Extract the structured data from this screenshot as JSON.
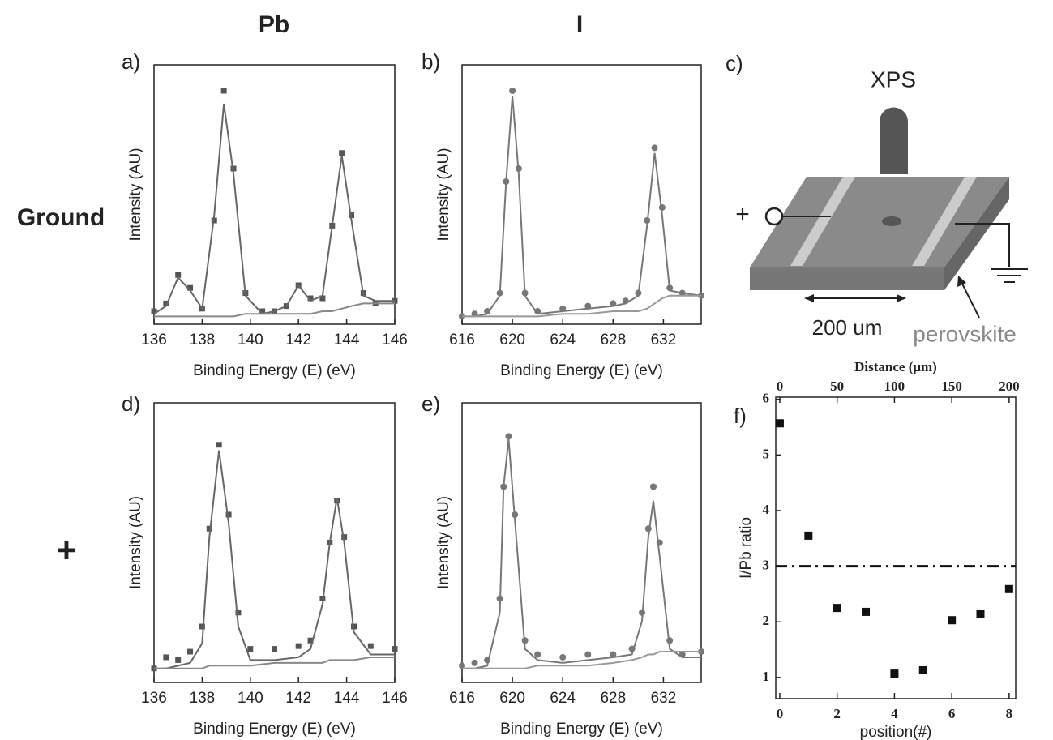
{
  "column_labels": [
    "Pb",
    "I"
  ],
  "row_labels": [
    "Ground",
    "+"
  ],
  "diagram": {
    "label": "c)",
    "probe": "XPS",
    "electrode": "+",
    "distance": "200 um",
    "material": "perovskite"
  },
  "chart_data": [
    {
      "type": "scatter",
      "label": "a)",
      "x_label": "Binding Energy (E) (eV)",
      "y_label": "Intensity (AU)",
      "marker": "square",
      "xlim": [
        136,
        146
      ],
      "xticks": [
        136,
        138,
        140,
        142,
        144,
        146
      ],
      "ylim": [
        0,
        100
      ],
      "x": [
        136,
        136.5,
        137,
        137.5,
        138,
        138.5,
        138.9,
        139.3,
        139.8,
        140.5,
        141,
        141.5,
        142,
        142.5,
        143,
        143.4,
        143.8,
        144.2,
        144.7,
        145.2,
        146
      ],
      "series": [
        {
          "mode": "markers",
          "color": "#555555",
          "values": [
            5,
            8,
            19,
            14,
            6,
            40,
            90,
            60,
            12,
            5,
            5,
            7,
            15,
            10,
            10,
            38,
            66,
            42,
            12,
            8,
            9
          ]
        },
        {
          "mode": "line",
          "color": "#666666",
          "values": [
            4,
            7,
            18,
            13,
            6,
            42,
            85,
            58,
            11,
            4,
            5,
            7,
            15,
            9,
            11,
            38,
            65,
            40,
            11,
            9,
            9
          ]
        },
        {
          "mode": "line",
          "color": "#888888",
          "values": [
            3,
            3,
            3,
            3,
            3,
            3,
            3,
            3,
            4,
            4,
            4,
            4,
            4,
            4,
            5,
            5,
            6,
            7,
            8,
            8,
            8
          ]
        }
      ]
    },
    {
      "type": "scatter",
      "label": "b)",
      "x_label": "Binding Energy (E) (eV)",
      "y_label": "Intensity (AU)",
      "marker": "circle",
      "xlim": [
        616,
        635
      ],
      "xticks": [
        616,
        620,
        624,
        628,
        632
      ],
      "ylim": [
        0,
        100
      ],
      "x": [
        616,
        617,
        618,
        619,
        619.5,
        620,
        620.5,
        621,
        622,
        624,
        626,
        628,
        629,
        630,
        630.7,
        631.3,
        631.9,
        632.5,
        633.5,
        635
      ],
      "series": [
        {
          "mode": "markers",
          "color": "#777777",
          "values": [
            3,
            4,
            5,
            12,
            55,
            90,
            60,
            12,
            5,
            6,
            7,
            8,
            9,
            12,
            40,
            68,
            45,
            14,
            12,
            11
          ]
        },
        {
          "mode": "line",
          "color": "#777777",
          "values": [
            3,
            3,
            4,
            11,
            55,
            88,
            58,
            11,
            4,
            5,
            6,
            7,
            8,
            11,
            38,
            66,
            42,
            13,
            12,
            11
          ]
        },
        {
          "mode": "line",
          "color": "#999999",
          "values": [
            3,
            3,
            3,
            3,
            3,
            3,
            3,
            3,
            3,
            4,
            4,
            5,
            5,
            5,
            6,
            8,
            10,
            11,
            11,
            11
          ]
        }
      ]
    },
    {
      "type": "scatter",
      "label": "d)",
      "x_label": "Binding Energy (E) (eV)",
      "y_label": "Intensity (AU)",
      "marker": "square",
      "xlim": [
        136,
        146
      ],
      "xticks": [
        136,
        138,
        140,
        142,
        144,
        146
      ],
      "ylim": [
        0,
        100
      ],
      "x": [
        136,
        136.5,
        137,
        137.5,
        138,
        138.3,
        138.7,
        139.1,
        139.5,
        140,
        141,
        142,
        142.5,
        143,
        143.3,
        143.6,
        143.9,
        144.3,
        145,
        146
      ],
      "series": [
        {
          "mode": "markers",
          "color": "#555555",
          "values": [
            5,
            9,
            8,
            11,
            20,
            55,
            85,
            60,
            25,
            12,
            12,
            13,
            15,
            30,
            50,
            65,
            52,
            20,
            13,
            12
          ]
        },
        {
          "mode": "line",
          "color": "#666666",
          "values": [
            5,
            5,
            6,
            7,
            14,
            52,
            83,
            57,
            20,
            8,
            8,
            9,
            12,
            28,
            50,
            66,
            50,
            18,
            10,
            10
          ]
        },
        {
          "mode": "line",
          "color": "#888888",
          "values": [
            5,
            5,
            5,
            5,
            5,
            6,
            6,
            6,
            6,
            6,
            7,
            7,
            7,
            7,
            8,
            8,
            8,
            8,
            9,
            9
          ]
        }
      ]
    },
    {
      "type": "scatter",
      "label": "e)",
      "x_label": "Binding Energy (E) (eV)",
      "y_label": "Intensity (AU)",
      "marker": "circle",
      "xlim": [
        616,
        635
      ],
      "xticks": [
        616,
        620,
        624,
        628,
        632
      ],
      "ylim": [
        0,
        100
      ],
      "x": [
        616,
        617,
        618,
        619,
        619.3,
        619.7,
        620.2,
        621,
        622,
        624,
        626,
        628,
        629.5,
        630.3,
        630.8,
        631.2,
        631.7,
        632.5,
        633.5,
        635
      ],
      "series": [
        {
          "mode": "markers",
          "color": "#777777",
          "values": [
            6,
            7,
            8,
            30,
            70,
            88,
            60,
            15,
            10,
            9,
            10,
            10,
            12,
            25,
            55,
            70,
            50,
            15,
            10,
            11
          ]
        },
        {
          "mode": "line",
          "color": "#777777",
          "values": [
            5,
            5,
            6,
            25,
            70,
            87,
            58,
            12,
            8,
            7,
            8,
            9,
            10,
            22,
            52,
            65,
            45,
            12,
            9,
            9
          ]
        },
        {
          "mode": "line",
          "color": "#999999",
          "values": [
            5,
            5,
            5,
            5,
            5,
            5,
            5,
            5,
            6,
            6,
            6,
            7,
            8,
            9,
            10,
            10,
            11,
            11,
            11,
            11
          ]
        }
      ]
    },
    {
      "type": "scatter",
      "label": "f)",
      "x_label": "position(#)",
      "y_label": "I/Pb ratio",
      "x2_label": "Distance (μm)",
      "marker": "square",
      "xlim": [
        -0.14,
        8.23
      ],
      "xticks": [
        0,
        2,
        4,
        6,
        8
      ],
      "x2lim": [
        -3.5,
        205.75
      ],
      "x2ticks": [
        0,
        50,
        100,
        150,
        200
      ],
      "ylim": [
        0.62,
        6.04
      ],
      "yticks": [
        1,
        2,
        3,
        4,
        5,
        6
      ],
      "reference_line": 3,
      "x": [
        0,
        1,
        2,
        3,
        4,
        5,
        6,
        7,
        8
      ],
      "series": [
        {
          "mode": "markers",
          "color": "#111111",
          "values": [
            5.57,
            3.55,
            2.25,
            2.18,
            1.07,
            1.13,
            2.03,
            2.15,
            2.59
          ]
        }
      ]
    }
  ]
}
